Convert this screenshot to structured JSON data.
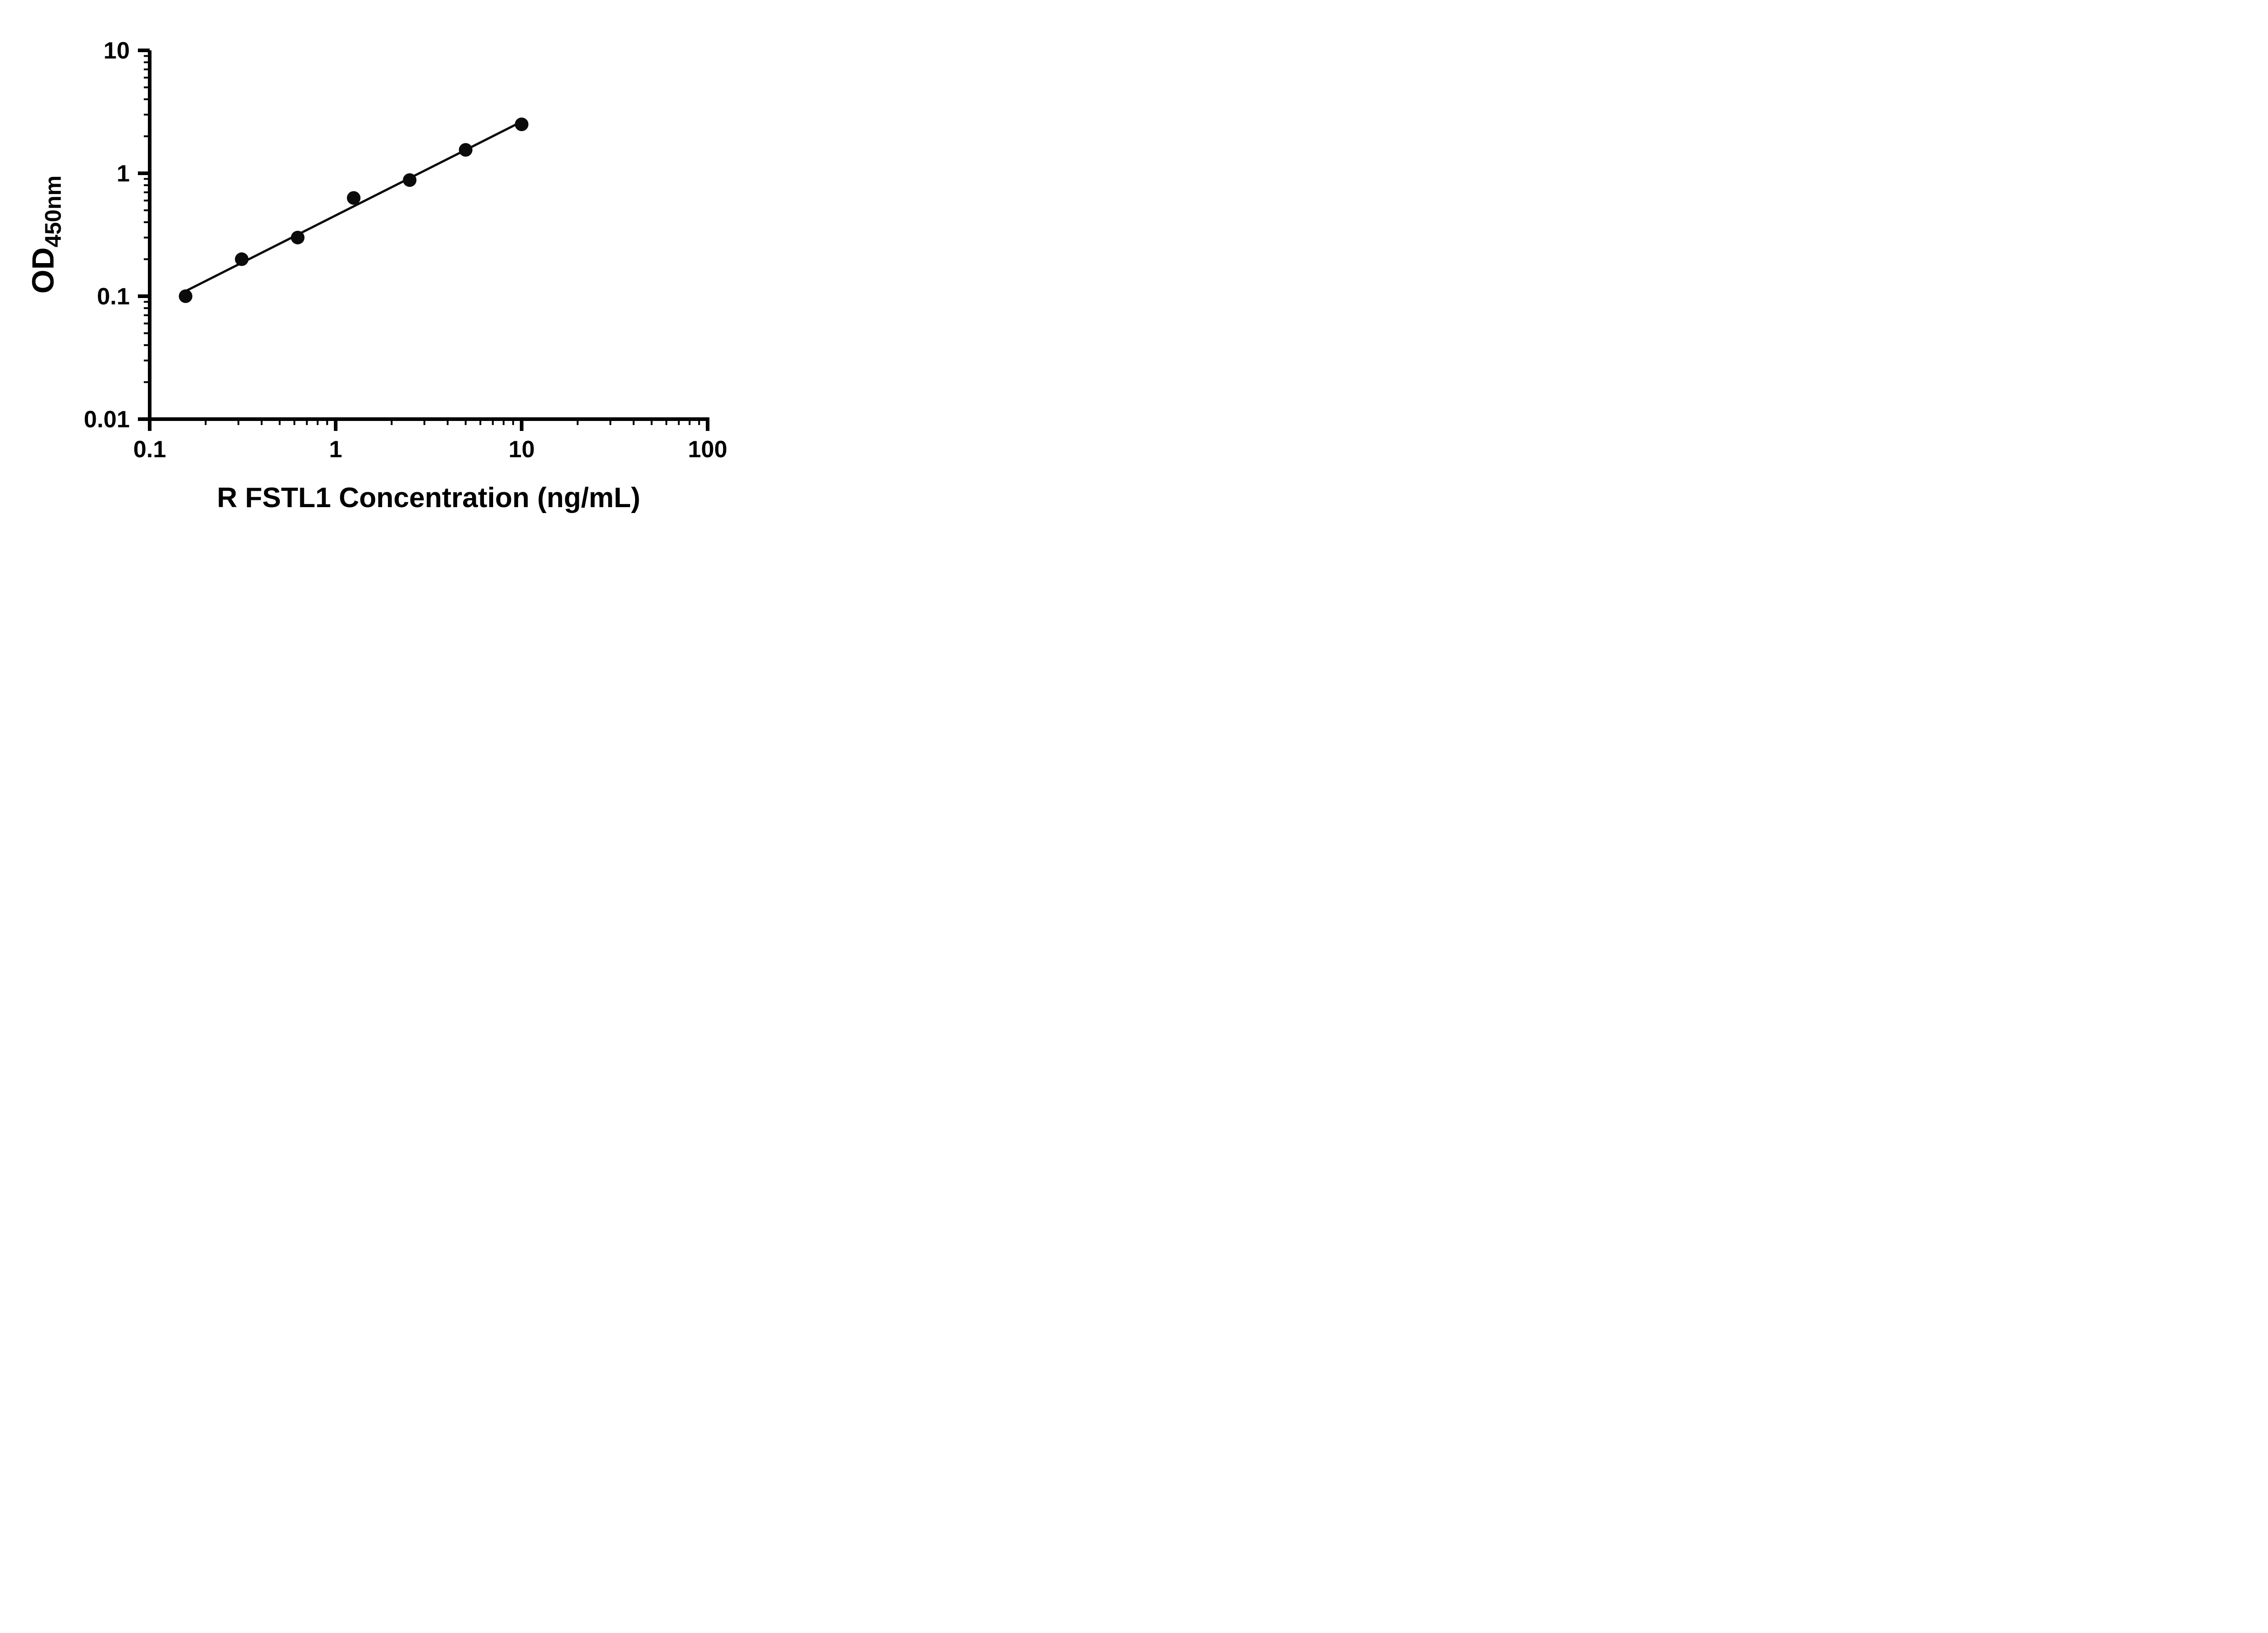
{
  "figure": {
    "background": "#ffffff"
  },
  "chart_data": {
    "type": "scatter",
    "title": "",
    "xlabel": "R FSTL1 Concentration (ng/mL)",
    "ylabel_main": "OD",
    "ylabel_sub": "450nm",
    "x_scale": "log10",
    "y_scale": "log10",
    "xlim": [
      0.1,
      100
    ],
    "ylim": [
      0.01,
      10
    ],
    "grid": false,
    "legend": "none",
    "x_ticks": [
      {
        "value": 0.1,
        "label": "0.1"
      },
      {
        "value": 1,
        "label": "1"
      },
      {
        "value": 10,
        "label": "10"
      },
      {
        "value": 100,
        "label": "100"
      }
    ],
    "y_ticks": [
      {
        "value": 0.01,
        "label": "0.01"
      },
      {
        "value": 0.1,
        "label": "0.1"
      },
      {
        "value": 1,
        "label": "1"
      },
      {
        "value": 10,
        "label": "10"
      }
    ],
    "minor_log_ticks": true,
    "points": [
      {
        "x": 0.156,
        "y": 0.1
      },
      {
        "x": 0.3125,
        "y": 0.2
      },
      {
        "x": 0.625,
        "y": 0.3
      },
      {
        "x": 1.25,
        "y": 0.63
      },
      {
        "x": 2.5,
        "y": 0.88
      },
      {
        "x": 5,
        "y": 1.55
      },
      {
        "x": 10,
        "y": 2.5
      }
    ],
    "trend_line": {
      "x1": 0.156,
      "y1": 0.11,
      "x2": 10,
      "y2": 2.63
    },
    "colors": {
      "axis": "#000000",
      "point_fill": "#0b0b0b",
      "trend_line": "#0b0b0b"
    }
  }
}
